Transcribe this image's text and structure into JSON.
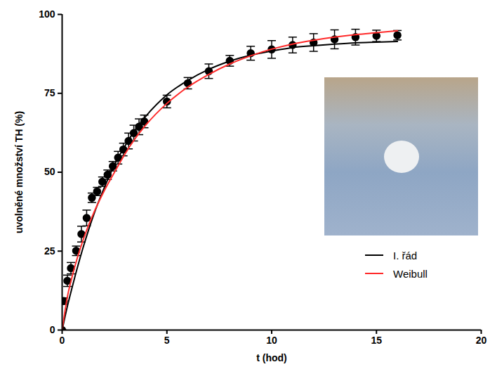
{
  "chart_data": {
    "type": "scatter",
    "x_label": "t (hod)",
    "y_label": "uvolněné množství TH (%)",
    "xlim": [
      0,
      20
    ],
    "xticks": [
      0,
      5,
      10,
      15,
      20
    ],
    "ylim": [
      0,
      100
    ],
    "yticks": [
      0,
      25,
      50,
      75,
      100
    ],
    "grid": false,
    "legend": "right",
    "series": [
      {
        "type": "scatter",
        "color": "#000000",
        "marker": "circle",
        "x": [
          0,
          0.08,
          0.25,
          0.42,
          0.67,
          0.92,
          1.17,
          1.42,
          1.67,
          1.92,
          2.17,
          2.42,
          2.67,
          2.92,
          3.17,
          3.42,
          3.67,
          3.92,
          5,
          6,
          7,
          8,
          9,
          10,
          11,
          12,
          13,
          14,
          15,
          16
        ],
        "values": [
          0,
          9.2,
          15.6,
          19.6,
          25.1,
          30.4,
          35.5,
          41.9,
          43.9,
          47,
          49.2,
          51.9,
          54.6,
          57.2,
          59.9,
          62.4,
          64.4,
          66.1,
          72.4,
          78.2,
          82,
          85.3,
          87.7,
          88.9,
          90.3,
          91.1,
          92.1,
          92.8,
          93.2,
          93.4
        ],
        "errors": [
          0,
          1,
          1.8,
          1.8,
          1.5,
          2.5,
          2.5,
          1.5,
          1.3,
          1.5,
          1.5,
          1.5,
          2,
          2,
          2.5,
          2.5,
          2.5,
          2,
          2,
          1.8,
          2.3,
          1.7,
          2.2,
          2.8,
          2.5,
          2.8,
          3,
          2.5,
          1.8,
          1.5
        ]
      },
      {
        "name": "I. řád",
        "type": "line",
        "color": "#000000",
        "line_style": "solid",
        "x": [
          0,
          0.25,
          0.5,
          1,
          1.5,
          2,
          2.5,
          3,
          3.5,
          4,
          5,
          6,
          7,
          8,
          9,
          10,
          11,
          12,
          13,
          14,
          15,
          16
        ],
        "values": [
          0,
          7.5,
          14.1,
          26.1,
          36.4,
          44.9,
          52.4,
          58.3,
          63.6,
          67.8,
          74.5,
          79.1,
          82.6,
          85.2,
          87.1,
          88.4,
          89.5,
          90.1,
          90.6,
          91,
          91.2,
          91.4
        ]
      },
      {
        "name": "Weibull",
        "type": "line",
        "color": "#ff2a2a",
        "line_style": "solid",
        "x": [
          0,
          0.25,
          0.5,
          1,
          1.5,
          2,
          2.5,
          3,
          3.5,
          4,
          5,
          6,
          7,
          8,
          9,
          10,
          11,
          12,
          13,
          14,
          15,
          16
        ],
        "values": [
          0,
          10.5,
          17.5,
          28.5,
          37,
          44,
          50,
          55.8,
          60.8,
          65,
          71.8,
          77,
          81,
          84.3,
          86.9,
          89,
          90.6,
          91.8,
          92.8,
          93.6,
          94.2,
          94.8
        ]
      }
    ]
  }
}
